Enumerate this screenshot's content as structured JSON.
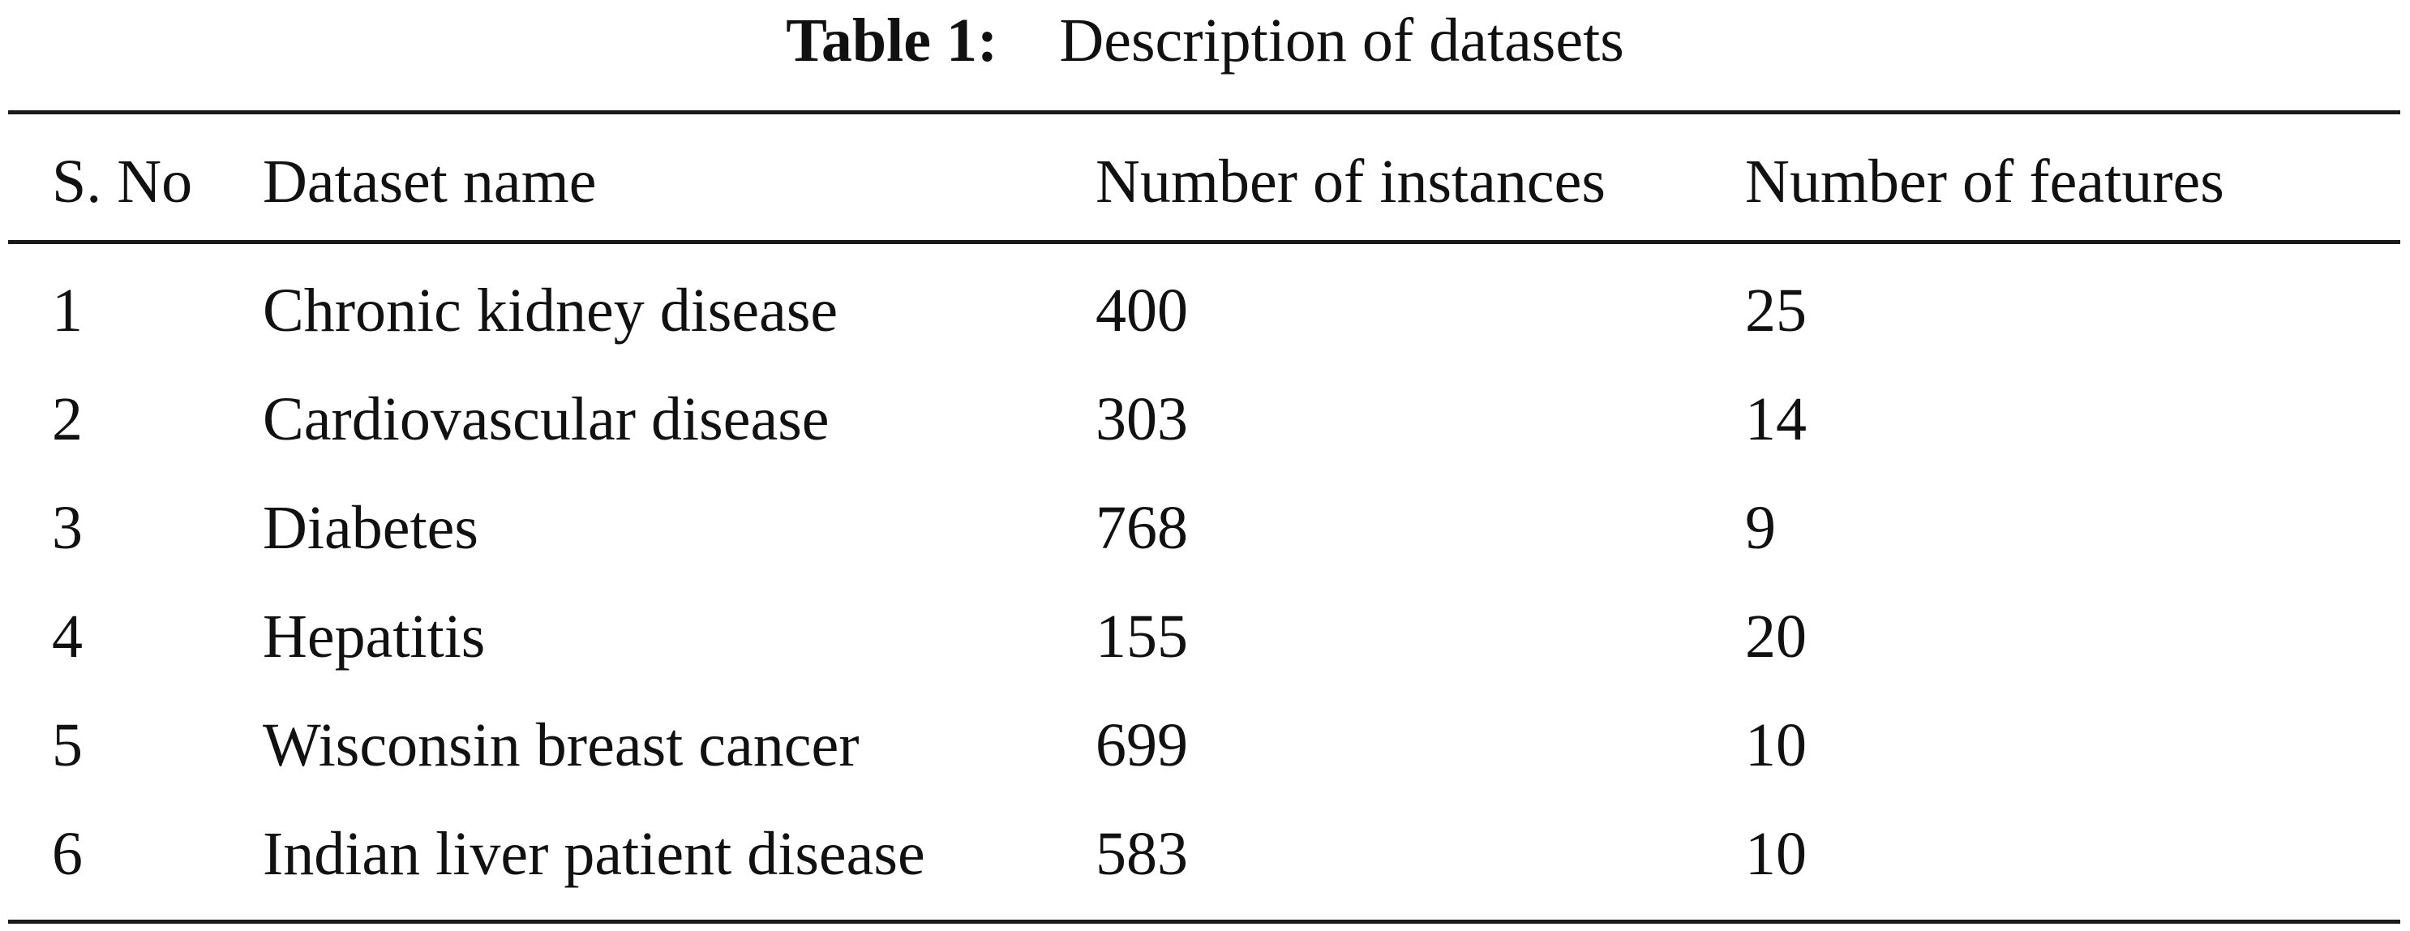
{
  "caption": {
    "label": "Table 1:",
    "title": "Description of datasets"
  },
  "table": {
    "headers": [
      "S. No",
      "Dataset name",
      "Number of instances",
      "Number of features"
    ],
    "rows": [
      [
        "1",
        "Chronic kidney disease",
        "400",
        "25"
      ],
      [
        "2",
        "Cardiovascular disease",
        "303",
        "14"
      ],
      [
        "3",
        "Diabetes",
        "768",
        "9"
      ],
      [
        "4",
        "Hepatitis",
        "155",
        "20"
      ],
      [
        "5",
        "Wisconsin breast cancer",
        "699",
        "10"
      ],
      [
        "6",
        "Indian liver patient disease",
        "583",
        "10"
      ]
    ]
  }
}
